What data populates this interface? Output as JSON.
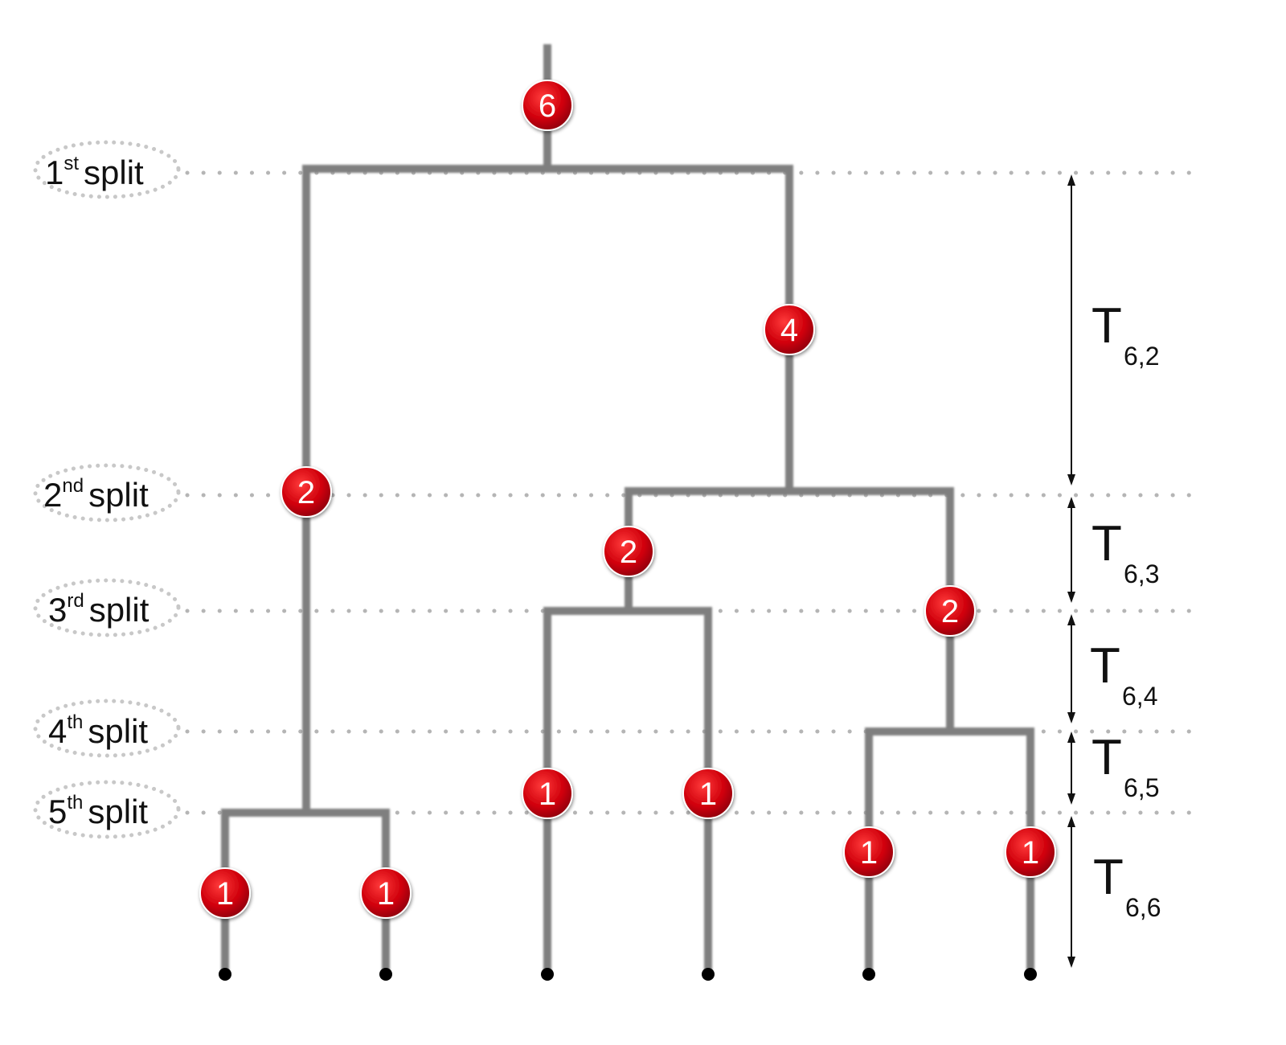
{
  "splits": [
    {
      "number": "1",
      "suffix": "st",
      "word": "split"
    },
    {
      "number": "2",
      "suffix": "nd",
      "word": "split"
    },
    {
      "number": "3",
      "suffix": "rd",
      "word": "split"
    },
    {
      "number": "4",
      "suffix": "th",
      "word": "split"
    },
    {
      "number": "5",
      "suffix": "th",
      "word": "split"
    }
  ],
  "badges": [
    "6",
    "4",
    "2",
    "2",
    "2",
    "1",
    "1",
    "1",
    "1",
    "1",
    "1"
  ],
  "intervals": [
    {
      "main": "T",
      "sub": "6,2"
    },
    {
      "main": "T",
      "sub": "6,3"
    },
    {
      "main": "T",
      "sub": "6,4"
    },
    {
      "main": "T",
      "sub": "6,5"
    },
    {
      "main": "T",
      "sub": "6,6"
    }
  ],
  "colors": {
    "branch": "#7f7f7f",
    "badge_fill": "#c8000a",
    "badge_text": "#ffffff",
    "guide_dots": "#b5b5b5"
  }
}
